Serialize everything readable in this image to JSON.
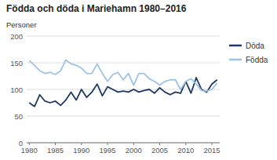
{
  "chart_data": {
    "type": "line",
    "title": "Födda och döda i Mariehamn 1980–2016",
    "ylabel": "Personer",
    "x": [
      1980,
      1981,
      1982,
      1983,
      1984,
      1985,
      1986,
      1987,
      1988,
      1989,
      1990,
      1991,
      1992,
      1993,
      1994,
      1995,
      1996,
      1997,
      1998,
      1999,
      2000,
      2001,
      2002,
      2003,
      2004,
      2005,
      2006,
      2007,
      2008,
      2009,
      2010,
      2011,
      2012,
      2013,
      2014,
      2015,
      2016
    ],
    "series": [
      {
        "name": "Döda",
        "color": "#1f3864",
        "values": [
          75,
          68,
          90,
          78,
          75,
          78,
          70,
          80,
          95,
          80,
          100,
          85,
          95,
          110,
          88,
          105,
          100,
          95,
          97,
          95,
          100,
          95,
          98,
          100,
          93,
          103,
          95,
          90,
          95,
          93,
          115,
          93,
          122,
          100,
          95,
          110,
          118
        ]
      },
      {
        "name": "Födda",
        "color": "#9dc3e6",
        "values": [
          154,
          145,
          135,
          130,
          132,
          128,
          135,
          155,
          148,
          145,
          140,
          130,
          130,
          148,
          130,
          115,
          128,
          132,
          118,
          130,
          108,
          130,
          130,
          120,
          115,
          108,
          115,
          118,
          118,
          100,
          115,
          120,
          110,
          98,
          97,
          100,
          112
        ]
      }
    ],
    "xlim": [
      1979.5,
      2016.5
    ],
    "ylim": [
      0,
      200
    ],
    "xticks": [
      1980,
      1985,
      1990,
      1995,
      2000,
      2005,
      2010,
      2015
    ],
    "yticks": [
      0,
      50,
      100,
      150,
      200
    ],
    "grid": true,
    "legend": "right"
  }
}
